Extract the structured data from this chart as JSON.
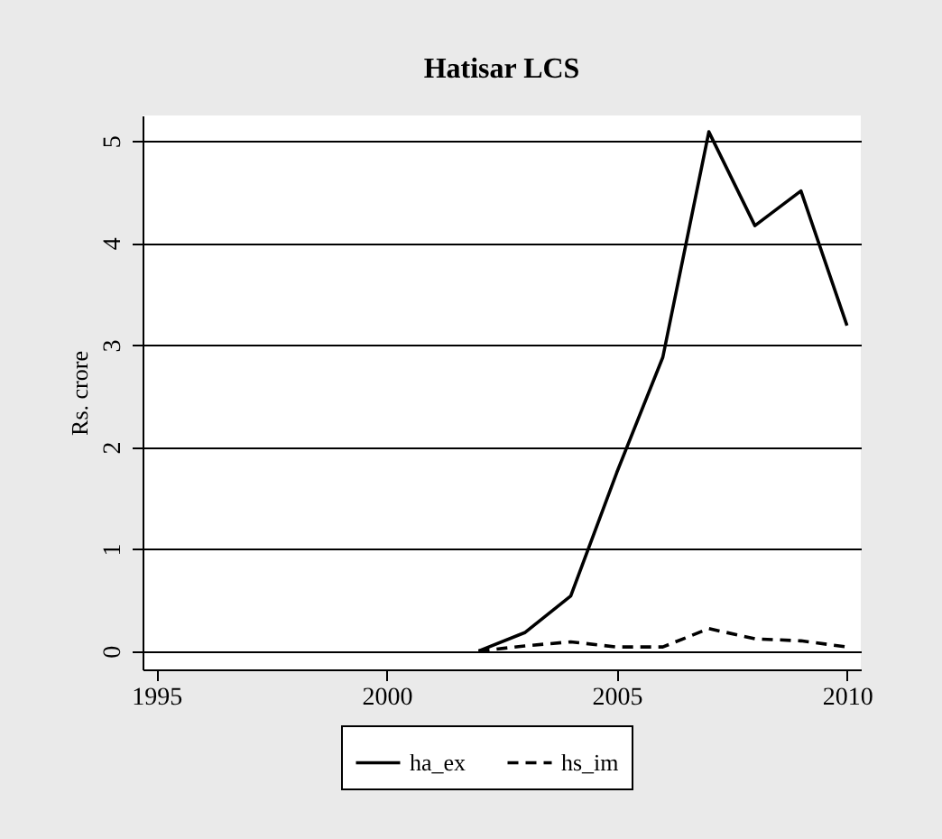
{
  "chart_data": {
    "type": "line",
    "title": "Hatisar LCS",
    "ylabel": "Rs. crore",
    "x": [
      2002,
      2003,
      2004,
      2005,
      2006,
      2007,
      2008,
      2009,
      2010
    ],
    "series": [
      {
        "name": "ha_ex",
        "color": "#000000",
        "line_style": "solid",
        "values": [
          0,
          0.18,
          0.54,
          1.75,
          2.88,
          5.09,
          4.17,
          4.51,
          3.19
        ]
      },
      {
        "name": "hs_im",
        "color": "#000000",
        "line_style": "dashed",
        "values": [
          0,
          0.05,
          0.09,
          0.04,
          0.04,
          0.22,
          0.12,
          0.1,
          0.04
        ]
      }
    ],
    "xlim": [
      1994.7,
      2010.3
    ],
    "xticks": [
      1995,
      2000,
      2005,
      2010
    ],
    "ylim": [
      -0.18,
      5.25
    ],
    "yticks": [
      0,
      1,
      2,
      3,
      4,
      5
    ],
    "grid": "y",
    "legend": "bottom",
    "marker": "none"
  }
}
